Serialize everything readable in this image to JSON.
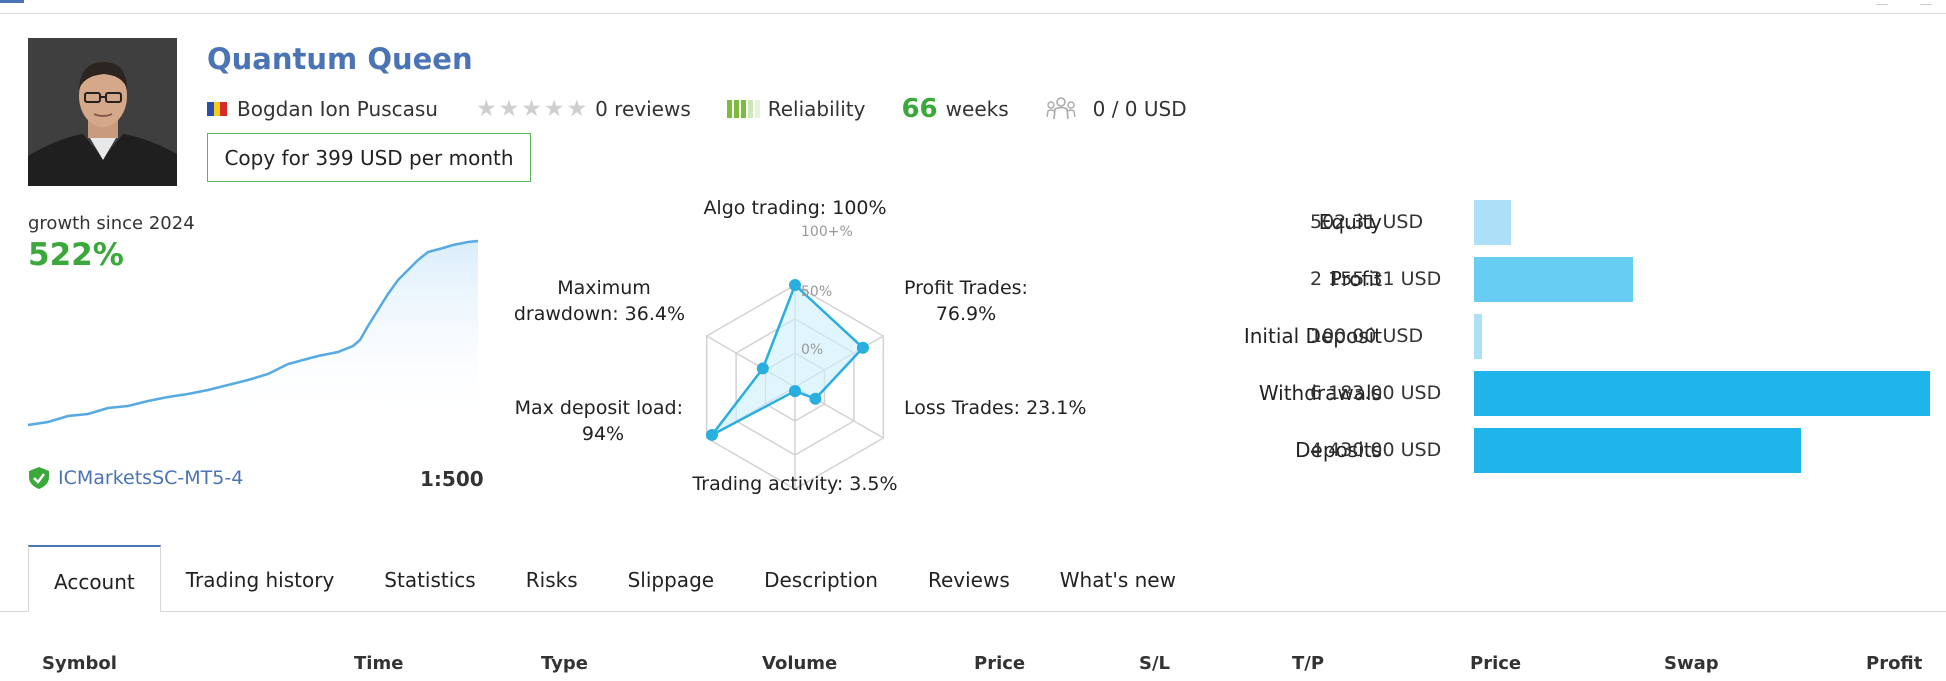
{
  "header": {
    "title": "Quantum Queen",
    "author": "Bogdan Ion Puscasu",
    "reviews": "0 reviews",
    "reliability": "Reliability",
    "weeks_value": "66",
    "weeks_label": "weeks",
    "subscribers": "0 / 0 USD",
    "copy_button": "Copy for 399 USD per month"
  },
  "growth": {
    "label": "growth since 2024",
    "value": "522%",
    "broker": "ICMarketsSC-MT5-4",
    "leverage": "1:500"
  },
  "radar": {
    "labels": {
      "algo": "Algo trading: 100%",
      "profit_1": "Profit Trades:",
      "profit_2": "76.9%",
      "loss": "Loss Trades: 23.1%",
      "activity": "Trading activity: 3.5%",
      "load_1": "Max deposit load:",
      "load_2": "94%",
      "dd_1": "Maximum",
      "dd_2": "drawdown: 36.4%"
    },
    "scale": [
      "100+%",
      "50%",
      "0%"
    ],
    "values": {
      "algo_trading": 100,
      "profit_trades": 76.9,
      "loss_trades": 23.1,
      "trading_activity": 3.5,
      "max_deposit_load": 94,
      "maximum_drawdown": 36.4
    }
  },
  "account_summary": [
    {
      "label": "Equity",
      "value": "502.31 USD",
      "amount": 502.31,
      "color": "#abe0f8"
    },
    {
      "label": "Profit",
      "value": "2 155.31 USD",
      "amount": 2155.31,
      "color": "#68cdf2"
    },
    {
      "label": "Initial Deposit",
      "value": "100.00 USD",
      "amount": 100.0,
      "color": "#abe0f8"
    },
    {
      "label": "Withdrawals",
      "value": "6 183.00 USD",
      "amount": 6183.0,
      "color": "#1fb5ea"
    },
    {
      "label": "Deposits",
      "value": "4 430.00 USD",
      "amount": 4430.0,
      "color": "#1fb5ea"
    }
  ],
  "tabs": [
    "Account",
    "Trading history",
    "Statistics",
    "Risks",
    "Slippage",
    "Description",
    "Reviews",
    "What's new"
  ],
  "table": {
    "columns": [
      "Symbol",
      "Time",
      "Type",
      "Volume",
      "Price",
      "S/L",
      "T/P",
      "Price",
      "Swap",
      "Profit"
    ]
  },
  "colors": {
    "accent_blue": "#4a74b5",
    "green": "#3aa83a",
    "radar_line": "#29aee0"
  }
}
